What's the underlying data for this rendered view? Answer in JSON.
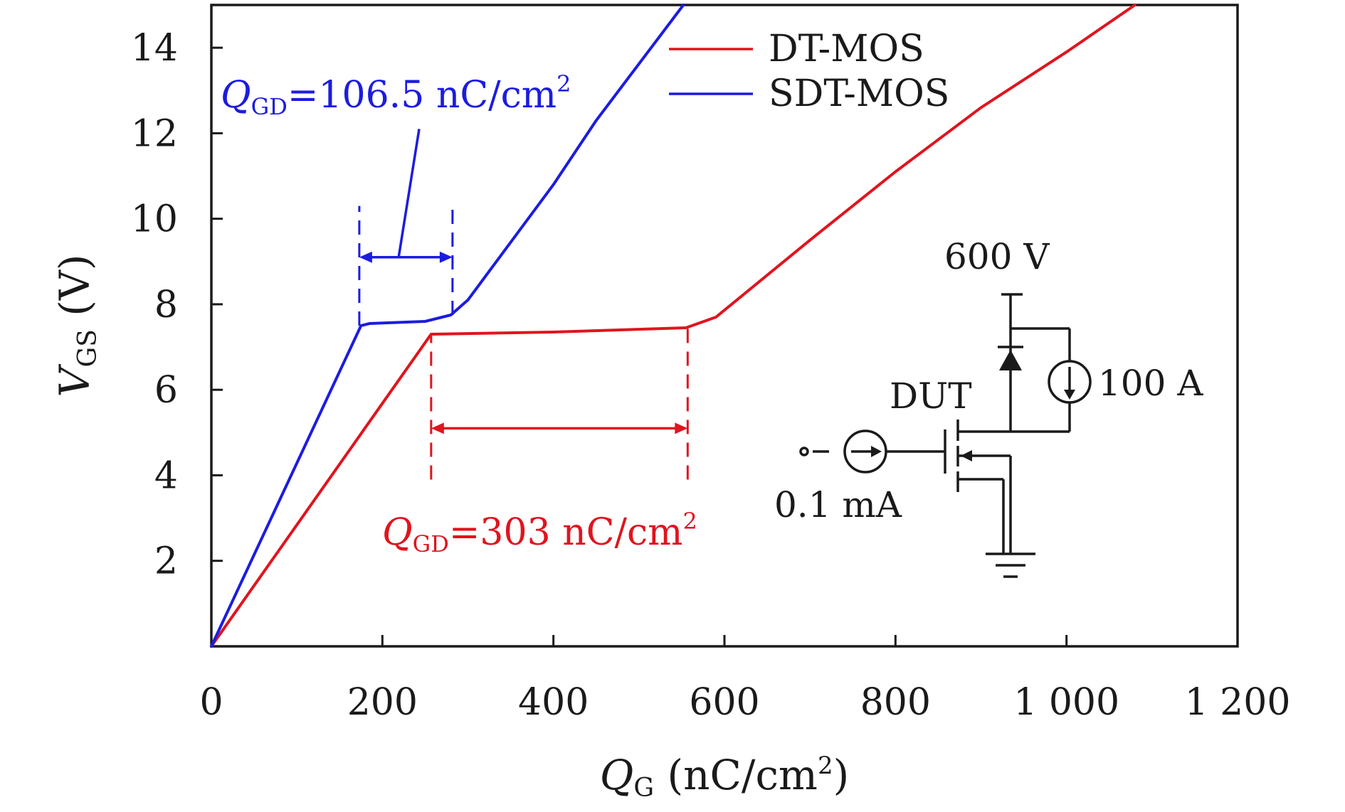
{
  "chart_data": {
    "type": "line",
    "xlabel": {
      "main": "Q",
      "sub": "G",
      "unit_pre": " (nC/cm",
      "unit_sup": "2",
      "unit_post": ")"
    },
    "ylabel": {
      "main": "V",
      "sub": "GS",
      "unit": " (V)"
    },
    "xlim": [
      0,
      1200
    ],
    "ylim": [
      0,
      15
    ],
    "xticks": [
      {
        "value": 0,
        "label": "0"
      },
      {
        "value": 200,
        "label": "200"
      },
      {
        "value": 400,
        "label": "400"
      },
      {
        "value": 600,
        "label": "600"
      },
      {
        "value": 800,
        "label": "800"
      },
      {
        "value": 1000,
        "label": "1 000"
      },
      {
        "value": 1200,
        "label": "1 200"
      }
    ],
    "yticks": [
      {
        "value": 2,
        "label": "2"
      },
      {
        "value": 4,
        "label": "4"
      },
      {
        "value": 6,
        "label": "6"
      },
      {
        "value": 8,
        "label": "8"
      },
      {
        "value": 10,
        "label": "10"
      },
      {
        "value": 12,
        "label": "12"
      },
      {
        "value": 14,
        "label": "14"
      }
    ],
    "grid": false,
    "legend_position": "top-right",
    "series": [
      {
        "name": "DT-MOS",
        "color": "#e0141e",
        "x": [
          0,
          257,
          400,
          555,
          590,
          700,
          800,
          900,
          1000,
          1080
        ],
        "y": [
          0,
          7.3,
          7.35,
          7.45,
          7.7,
          9.5,
          11.1,
          12.6,
          13.9,
          15
        ]
      },
      {
        "name": "SDT-MOS",
        "color": "#1c1ce0",
        "x": [
          0,
          175,
          185,
          250,
          280,
          300,
          400,
          450,
          552
        ],
        "y": [
          0,
          7.5,
          7.55,
          7.6,
          7.75,
          8.1,
          10.8,
          12.3,
          15
        ]
      }
    ],
    "annotations": [
      {
        "id": "qgd-sdt",
        "color": "#1c1ce0",
        "text_main": "Q",
        "text_sub": "GD",
        "text_value": "=106.5 nC/cm",
        "text_sup": "2",
        "dim_x1": 173,
        "dim_x2": 282,
        "dim_y": 9.1,
        "guide1_y": [
          7.5,
          10.3
        ],
        "guide2_y": [
          7.75,
          10.3
        ],
        "label_x": 3,
        "label_y": 12.8,
        "leader_from": [
          219,
          9.1
        ],
        "leader_to": [
          243,
          12.1
        ]
      },
      {
        "id": "qgd-dt",
        "color": "#e0141e",
        "text_main": "Q",
        "text_sub": "GD",
        "text_value": "=303 nC/cm",
        "text_sup": "2",
        "dim_x1": 257,
        "dim_x2": 557,
        "dim_y": 5.1,
        "guide1_y": [
          3.9,
          7.3
        ],
        "guide2_y": [
          3.9,
          7.45
        ],
        "label_x": 200,
        "label_y": 2.4
      }
    ],
    "inset_circuit": {
      "voltage_label": "600 V",
      "current_label": "100 A",
      "device_label": "DUT",
      "gate_current_label": "0.1 mA"
    }
  }
}
